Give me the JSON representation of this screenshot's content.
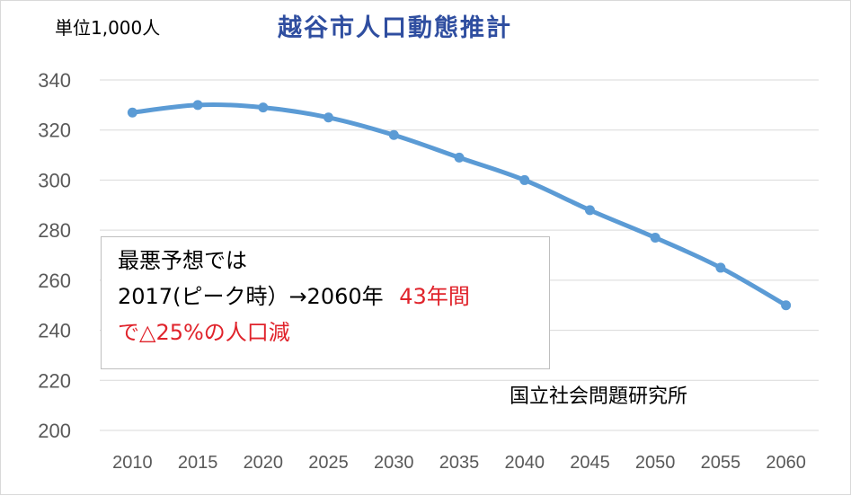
{
  "chart_data": {
    "type": "line",
    "title": "越谷市人口動態推計",
    "unit_label": "単位1,000人",
    "categories": [
      "2010",
      "2015",
      "2020",
      "2025",
      "2030",
      "2035",
      "2040",
      "2045",
      "2050",
      "2055",
      "2060"
    ],
    "series": [
      {
        "values": [
          327,
          330,
          329,
          325,
          318,
          309,
          300,
          288,
          277,
          265,
          250
        ]
      }
    ],
    "ylim": [
      200,
      340
    ],
    "yticks": [
      200,
      220,
      240,
      260,
      280,
      300,
      320,
      340
    ],
    "grid": true,
    "line_color": "#5b9bd5",
    "annotation": {
      "line1": "最悪予想では",
      "line2_black": "2017(ピーク時）→2060年",
      "line2_red": "43年間",
      "line3_red": "で△25%の人口減"
    },
    "source": "国立社会問題研究所",
    "colors": {
      "title": "#2f4ea0",
      "highlight": "#e0232b",
      "grid": "#d9d9d9",
      "axis_text": "#595959"
    }
  }
}
